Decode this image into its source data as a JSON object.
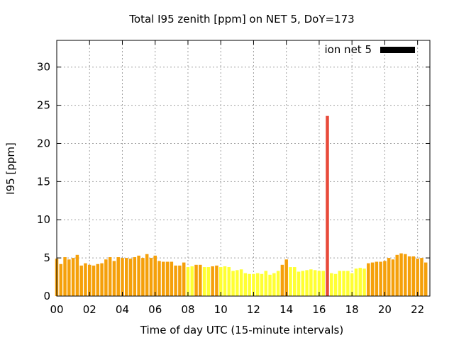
{
  "chart_data": {
    "type": "bar",
    "title": "Total I95 zenith [ppm] on NET 5, DoY=173",
    "xlabel": "Time of day UTC (15-minute intervals)",
    "ylabel": "I95 [ppm]",
    "xlim": [
      0,
      22.75
    ],
    "ylim": [
      0,
      33.5
    ],
    "x_ticks": [
      "00",
      "02",
      "04",
      "06",
      "08",
      "10",
      "12",
      "14",
      "16",
      "18",
      "20",
      "22"
    ],
    "y_ticks": [
      "0",
      "5",
      "10",
      "15",
      "20",
      "25",
      "30"
    ],
    "grid": true,
    "legend": {
      "position": "top-right",
      "entries": [
        {
          "label": "ion net 5",
          "color": "#000000"
        }
      ]
    },
    "colors": {
      "high": "#e84a3a",
      "mid": "#f5a00a",
      "low": "#ffff33"
    },
    "x_start": 0,
    "x_step": 0.25,
    "values": [
      4.9,
      4.2,
      5.1,
      4.8,
      5.0,
      5.4,
      4.0,
      4.3,
      4.1,
      4.0,
      4.2,
      4.3,
      4.8,
      5.1,
      4.6,
      5.1,
      5.0,
      5.0,
      4.9,
      5.1,
      5.3,
      5.0,
      5.5,
      5.0,
      5.3,
      4.6,
      4.5,
      4.5,
      4.5,
      4.0,
      4.0,
      4.4,
      3.8,
      3.9,
      4.1,
      4.1,
      3.8,
      3.8,
      3.9,
      4.0,
      3.8,
      3.9,
      3.8,
      3.3,
      3.4,
      3.5,
      3.0,
      2.9,
      2.9,
      3.0,
      2.9,
      3.3,
      2.8,
      3.0,
      3.3,
      4.1,
      4.8,
      3.8,
      3.8,
      3.2,
      3.3,
      3.4,
      3.5,
      3.4,
      3.3,
      3.3,
      23.6,
      3.0,
      2.9,
      3.3,
      3.3,
      3.3,
      3.0,
      3.6,
      3.7,
      3.6,
      4.3,
      4.4,
      4.5,
      4.5,
      4.6,
      5.0,
      4.8,
      5.4,
      5.6,
      5.5,
      5.2,
      5.2,
      4.9,
      5.0,
      4.4
    ],
    "categories_colors": [
      "mid",
      "mid",
      "mid",
      "mid",
      "mid",
      "mid",
      "mid",
      "mid",
      "mid",
      "mid",
      "mid",
      "mid",
      "mid",
      "mid",
      "mid",
      "mid",
      "mid",
      "mid",
      "mid",
      "mid",
      "mid",
      "mid",
      "mid",
      "mid",
      "mid",
      "mid",
      "mid",
      "mid",
      "mid",
      "mid",
      "mid",
      "mid",
      "low",
      "low",
      "mid",
      "mid",
      "low",
      "low",
      "mid",
      "mid",
      "low",
      "low",
      "low",
      "low",
      "low",
      "low",
      "low",
      "low",
      "low",
      "low",
      "low",
      "low",
      "low",
      "low",
      "low",
      "mid",
      "mid",
      "low",
      "low",
      "low",
      "low",
      "low",
      "low",
      "low",
      "low",
      "low",
      "high",
      "low",
      "low",
      "low",
      "low",
      "low",
      "low",
      "low",
      "low",
      "low",
      "mid",
      "mid",
      "mid",
      "mid",
      "mid",
      "mid",
      "mid",
      "mid",
      "mid",
      "mid",
      "mid",
      "mid",
      "mid",
      "mid",
      "mid"
    ]
  }
}
